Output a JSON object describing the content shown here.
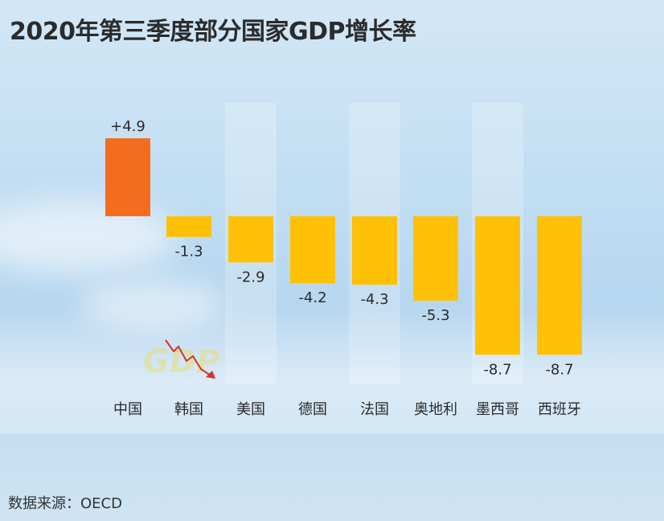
{
  "title": "2020年第三季度部分国家GDP增长率",
  "source": "数据来源：OECD",
  "decoration": {
    "gdp_watermark": "GDP"
  },
  "colors": {
    "positive": "#f46d1f",
    "negative": "#ffc107",
    "label": "#2a2a2a"
  },
  "chart_data": {
    "type": "bar",
    "title": "2020年第三季度部分国家GDP增长率",
    "xlabel": "",
    "ylabel": "",
    "categories": [
      "中国",
      "韩国",
      "美国",
      "德国",
      "法国",
      "奥地利",
      "墨西哥",
      "西班牙"
    ],
    "values": [
      4.9,
      -1.3,
      -2.9,
      -4.2,
      -4.3,
      -5.3,
      -8.7,
      -8.7
    ],
    "value_labels": [
      "+4.9",
      "-1.3",
      "-2.9",
      "-4.2",
      "-4.3",
      "-5.3",
      "-8.7",
      "-8.7"
    ],
    "ylim": [
      -8.7,
      4.9
    ],
    "grid": false,
    "legend": "none"
  }
}
